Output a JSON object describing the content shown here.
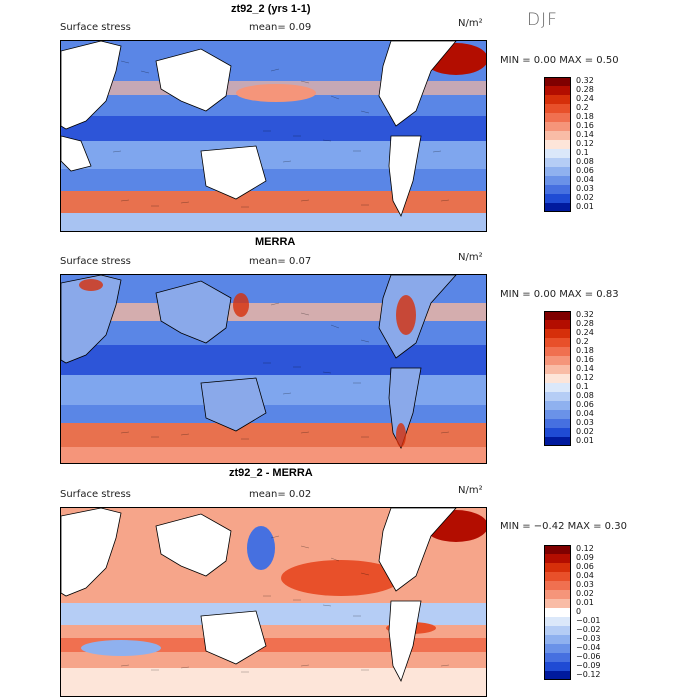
{
  "season": "DJF",
  "panels": [
    {
      "title": "zt92_2 (yrs 1-1)",
      "variable": "Surface stress",
      "mean_label": "mean=",
      "mean_value": "0.09",
      "units": "N/m²",
      "minmax": "MIN =    0.00 MAX =    0.50",
      "scale": "sequential",
      "colorbar_labels": [
        "0.32",
        "0.28",
        "0.24",
        "0.2",
        "0.18",
        "0.16",
        "0.14",
        "0.12",
        "0.1",
        "0.08",
        "0.06",
        "0.04",
        "0.03",
        "0.02",
        "0.01"
      ]
    },
    {
      "title": "MERRA",
      "variable": "Surface stress",
      "mean_label": "mean=",
      "mean_value": "0.07",
      "units": "N/m²",
      "minmax": "MIN =    0.00 MAX =    0.83",
      "scale": "sequential",
      "colorbar_labels": [
        "0.32",
        "0.28",
        "0.24",
        "0.2",
        "0.18",
        "0.16",
        "0.14",
        "0.12",
        "0.1",
        "0.08",
        "0.06",
        "0.04",
        "0.03",
        "0.02",
        "0.01"
      ]
    },
    {
      "title": "zt92_2 - MERRA",
      "variable": "Surface stress",
      "mean_label": "mean=",
      "mean_value": "0.02",
      "units": "N/m²",
      "minmax": "MIN =  −0.42 MAX =    0.30",
      "scale": "diverging",
      "colorbar_labels": [
        "0.12",
        "0.09",
        "0.06",
        "0.04",
        "0.03",
        "0.02",
        "0.01",
        "0",
        "−0.01",
        "−0.02",
        "−0.03",
        "−0.04",
        "−0.06",
        "−0.09",
        "−0.12"
      ]
    }
  ],
  "colors": {
    "sequential": [
      "#7f0000",
      "#b30d00",
      "#d62f0a",
      "#e8502a",
      "#f07050",
      "#f5957a",
      "#f9bca6",
      "#fde5d9",
      "#dbe8fa",
      "#b5cdf5",
      "#8fb1ef",
      "#6a92e8",
      "#4670e0",
      "#1f4bd4",
      "#001a9e"
    ],
    "diverging": [
      "#7f0000",
      "#b30d00",
      "#d62f0a",
      "#e8502a",
      "#f07050",
      "#f5957a",
      "#f9bca6",
      "#ffffff",
      "#dbe8fa",
      "#b5cdf5",
      "#8fb1ef",
      "#6a92e8",
      "#4670e0",
      "#1f4bd4",
      "#001a9e"
    ],
    "land": "#ffffff",
    "coast": "#000000"
  }
}
